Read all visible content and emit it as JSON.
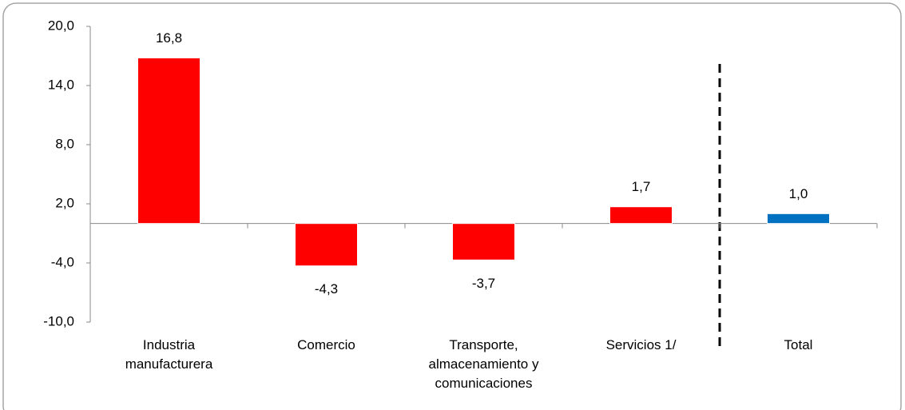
{
  "chart_data": {
    "type": "bar",
    "categories": [
      "Industria manufacturera",
      "Comercio",
      "Transporte, almacenamiento y comunicaciones",
      "Servicios 1/",
      "Total"
    ],
    "values": [
      16.8,
      -4.3,
      -3.7,
      1.7,
      1.0
    ],
    "value_labels": [
      "16,8",
      "-4,3",
      "-3,7",
      "1,7",
      "1,0"
    ],
    "colors": [
      "#ff0000",
      "#ff0000",
      "#ff0000",
      "#ff0000",
      "#0070c0"
    ],
    "ylim": [
      -10,
      20
    ],
    "yticks": [
      {
        "value": -10,
        "label": "-10,0"
      },
      {
        "value": -4,
        "label": "-4,0"
      },
      {
        "value": 2,
        "label": "2,0"
      },
      {
        "value": 8,
        "label": "8,0"
      },
      {
        "value": 14,
        "label": "14,0"
      },
      {
        "value": 20,
        "label": "20,0"
      }
    ],
    "grid": false
  }
}
